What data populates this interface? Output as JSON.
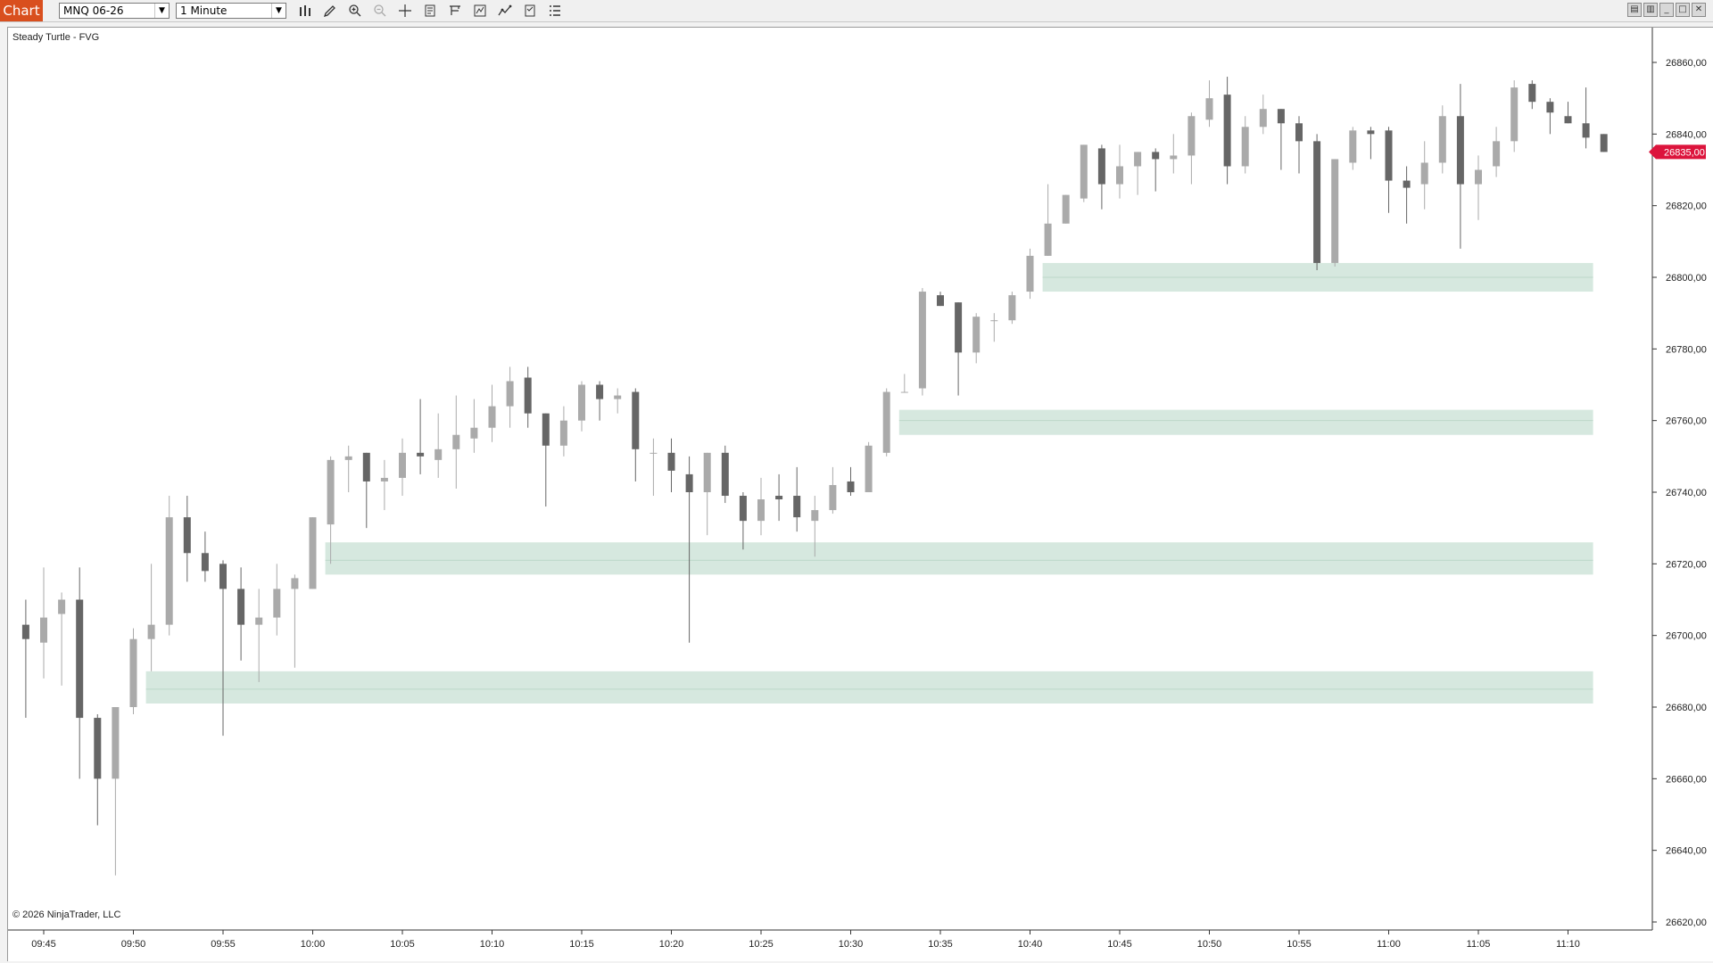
{
  "toolbar": {
    "tab_label": "Chart",
    "instrument": "MNQ 06-26",
    "interval": "1 Minute",
    "icons": [
      "bar-type-icon",
      "pencil-icon",
      "zoom-in-icon",
      "zoom-out-icon",
      "crosshair-icon",
      "properties-icon",
      "data-box-icon",
      "strategies-icon",
      "indicators-icon",
      "template-icon",
      "list-icon"
    ],
    "window_buttons": [
      "tile-icon",
      "tile-icon",
      "minimize-icon",
      "maximize-icon",
      "close-icon"
    ]
  },
  "chart": {
    "indicator_label": "Steady Turtle - FVG",
    "copyright": "© 2026 NinjaTrader, LLC",
    "price_tag": "26835,00",
    "colors": {
      "up": "#aaaaaa",
      "down": "#666666",
      "zone": "#d6e8df",
      "zone_line": "#bcd8c9",
      "price_tag": "#dc143c"
    }
  },
  "chart_data": {
    "type": "candlestick",
    "y_axis": {
      "ticks": [
        "26860,00",
        "26840,00",
        "26820,00",
        "26800,00",
        "26780,00",
        "26760,00",
        "26740,00",
        "26720,00",
        "26700,00",
        "26680,00",
        "26660,00",
        "26640,00",
        "26620,00"
      ],
      "range": [
        26617,
        26867
      ]
    },
    "x_axis": {
      "ticks": [
        "09:45",
        "09:50",
        "09:55",
        "10:00",
        "10:05",
        "10:10",
        "10:15",
        "10:20",
        "10:25",
        "10:30",
        "10:35",
        "10:40",
        "10:45",
        "10:50",
        "10:55",
        "11:00",
        "11:05",
        "11:10"
      ]
    },
    "fvg_zones": [
      {
        "top": 26804,
        "bottom": 26796,
        "mid": 26800,
        "start": "10:41",
        "end": "11:11"
      },
      {
        "top": 26763,
        "bottom": 26756,
        "mid": 26760,
        "start": "10:33",
        "end": "11:11"
      },
      {
        "top": 26726,
        "bottom": 26717,
        "mid": 26721,
        "start": "10:01",
        "end": "11:11"
      },
      {
        "top": 26690,
        "bottom": 26681,
        "mid": 26685,
        "start": "09:51",
        "end": "11:11"
      }
    ],
    "candles": [
      {
        "t": "09:44",
        "o": 26703,
        "h": 26710,
        "l": 26677,
        "c": 26699
      },
      {
        "t": "09:45",
        "o": 26698,
        "h": 26719,
        "l": 26688,
        "c": 26705
      },
      {
        "t": "09:46",
        "o": 26706,
        "h": 26712,
        "l": 26686,
        "c": 26710
      },
      {
        "t": "09:47",
        "o": 26710,
        "h": 26719,
        "l": 26660,
        "c": 26677
      },
      {
        "t": "09:48",
        "o": 26677,
        "h": 26678,
        "l": 26647,
        "c": 26660
      },
      {
        "t": "09:49",
        "o": 26660,
        "h": 26680,
        "l": 26633,
        "c": 26680
      },
      {
        "t": "09:50",
        "o": 26680,
        "h": 26702,
        "l": 26678,
        "c": 26699
      },
      {
        "t": "09:51",
        "o": 26699,
        "h": 26720,
        "l": 26690,
        "c": 26703
      },
      {
        "t": "09:52",
        "o": 26703,
        "h": 26739,
        "l": 26700,
        "c": 26733
      },
      {
        "t": "09:53",
        "o": 26733,
        "h": 26739,
        "l": 26715,
        "c": 26723
      },
      {
        "t": "09:54",
        "o": 26723,
        "h": 26729,
        "l": 26715,
        "c": 26718
      },
      {
        "t": "09:55",
        "o": 26720,
        "h": 26721,
        "l": 26672,
        "c": 26713
      },
      {
        "t": "09:56",
        "o": 26713,
        "h": 26719,
        "l": 26693,
        "c": 26703
      },
      {
        "t": "09:57",
        "o": 26703,
        "h": 26713,
        "l": 26687,
        "c": 26705
      },
      {
        "t": "09:58",
        "o": 26705,
        "h": 26720,
        "l": 26700,
        "c": 26713
      },
      {
        "t": "09:59",
        "o": 26713,
        "h": 26717,
        "l": 26691,
        "c": 26716
      },
      {
        "t": "10:00",
        "o": 26713,
        "h": 26733,
        "l": 26713,
        "c": 26733
      },
      {
        "t": "10:01",
        "o": 26731,
        "h": 26750,
        "l": 26720,
        "c": 26749
      },
      {
        "t": "10:02",
        "o": 26749,
        "h": 26753,
        "l": 26740,
        "c": 26750
      },
      {
        "t": "10:03",
        "o": 26751,
        "h": 26751,
        "l": 26730,
        "c": 26743
      },
      {
        "t": "10:04",
        "o": 26743,
        "h": 26749,
        "l": 26735,
        "c": 26744
      },
      {
        "t": "10:05",
        "o": 26744,
        "h": 26755,
        "l": 26739,
        "c": 26751
      },
      {
        "t": "10:06",
        "o": 26751,
        "h": 26766,
        "l": 26745,
        "c": 26750
      },
      {
        "t": "10:07",
        "o": 26749,
        "h": 26762,
        "l": 26744,
        "c": 26752
      },
      {
        "t": "10:08",
        "o": 26752,
        "h": 26767,
        "l": 26741,
        "c": 26756
      },
      {
        "t": "10:09",
        "o": 26755,
        "h": 26766,
        "l": 26751,
        "c": 26758
      },
      {
        "t": "10:10",
        "o": 26758,
        "h": 26770,
        "l": 26754,
        "c": 26764
      },
      {
        "t": "10:11",
        "o": 26764,
        "h": 26775,
        "l": 26758,
        "c": 26771
      },
      {
        "t": "10:12",
        "o": 26772,
        "h": 26775,
        "l": 26758,
        "c": 26762
      },
      {
        "t": "10:13",
        "o": 26762,
        "h": 26762,
        "l": 26736,
        "c": 26753
      },
      {
        "t": "10:14",
        "o": 26753,
        "h": 26764,
        "l": 26750,
        "c": 26760
      },
      {
        "t": "10:15",
        "o": 26760,
        "h": 26771,
        "l": 26757,
        "c": 26770
      },
      {
        "t": "10:16",
        "o": 26770,
        "h": 26771,
        "l": 26760,
        "c": 26766
      },
      {
        "t": "10:17",
        "o": 26766,
        "h": 26769,
        "l": 26762,
        "c": 26767
      },
      {
        "t": "10:18",
        "o": 26768,
        "h": 26769,
        "l": 26743,
        "c": 26752
      },
      {
        "t": "10:19",
        "o": 26751,
        "h": 26755,
        "l": 26739,
        "c": 26751
      },
      {
        "t": "10:20",
        "o": 26751,
        "h": 26755,
        "l": 26740,
        "c": 26746
      },
      {
        "t": "10:21",
        "o": 26745,
        "h": 26750,
        "l": 26698,
        "c": 26740
      },
      {
        "t": "10:22",
        "o": 26740,
        "h": 26751,
        "l": 26728,
        "c": 26751
      },
      {
        "t": "10:23",
        "o": 26751,
        "h": 26753,
        "l": 26737,
        "c": 26739
      },
      {
        "t": "10:24",
        "o": 26739,
        "h": 26740,
        "l": 26724,
        "c": 26732
      },
      {
        "t": "10:25",
        "o": 26732,
        "h": 26744,
        "l": 26728,
        "c": 26738
      },
      {
        "t": "10:26",
        "o": 26739,
        "h": 26745,
        "l": 26732,
        "c": 26738
      },
      {
        "t": "10:27",
        "o": 26739,
        "h": 26747,
        "l": 26729,
        "c": 26733
      },
      {
        "t": "10:28",
        "o": 26732,
        "h": 26739,
        "l": 26722,
        "c": 26735
      },
      {
        "t": "10:29",
        "o": 26735,
        "h": 26747,
        "l": 26734,
        "c": 26742
      },
      {
        "t": "10:30",
        "o": 26743,
        "h": 26747,
        "l": 26739,
        "c": 26740
      },
      {
        "t": "10:31",
        "o": 26740,
        "h": 26754,
        "l": 26740,
        "c": 26753
      },
      {
        "t": "10:32",
        "o": 26751,
        "h": 26769,
        "l": 26750,
        "c": 26768
      },
      {
        "t": "10:33",
        "o": 26768,
        "h": 26773,
        "l": 26768,
        "c": 26768
      },
      {
        "t": "10:34",
        "o": 26769,
        "h": 26797,
        "l": 26767,
        "c": 26796
      },
      {
        "t": "10:35",
        "o": 26795,
        "h": 26796,
        "l": 26792,
        "c": 26792
      },
      {
        "t": "10:36",
        "o": 26793,
        "h": 26793,
        "l": 26767,
        "c": 26779
      },
      {
        "t": "10:37",
        "o": 26779,
        "h": 26790,
        "l": 26776,
        "c": 26789
      },
      {
        "t": "10:38",
        "o": 26788,
        "h": 26790,
        "l": 26782,
        "c": 26788
      },
      {
        "t": "10:39",
        "o": 26788,
        "h": 26796,
        "l": 26787,
        "c": 26795
      },
      {
        "t": "10:40",
        "o": 26796,
        "h": 26808,
        "l": 26794,
        "c": 26806
      },
      {
        "t": "10:41",
        "o": 26806,
        "h": 26826,
        "l": 26806,
        "c": 26815
      },
      {
        "t": "10:42",
        "o": 26815,
        "h": 26823,
        "l": 26815,
        "c": 26823
      },
      {
        "t": "10:43",
        "o": 26822,
        "h": 26837,
        "l": 26821,
        "c": 26837
      },
      {
        "t": "10:44",
        "o": 26836,
        "h": 26837,
        "l": 26819,
        "c": 26826
      },
      {
        "t": "10:45",
        "o": 26826,
        "h": 26837,
        "l": 26822,
        "c": 26831
      },
      {
        "t": "10:46",
        "o": 26831,
        "h": 26835,
        "l": 26823,
        "c": 26835
      },
      {
        "t": "10:47",
        "o": 26835,
        "h": 26836,
        "l": 26824,
        "c": 26833
      },
      {
        "t": "10:48",
        "o": 26833,
        "h": 26840,
        "l": 26829,
        "c": 26834
      },
      {
        "t": "10:49",
        "o": 26834,
        "h": 26846,
        "l": 26826,
        "c": 26845
      },
      {
        "t": "10:50",
        "o": 26844,
        "h": 26855,
        "l": 26842,
        "c": 26850
      },
      {
        "t": "10:51",
        "o": 26851,
        "h": 26856,
        "l": 26826,
        "c": 26831
      },
      {
        "t": "10:52",
        "o": 26831,
        "h": 26845,
        "l": 26829,
        "c": 26842
      },
      {
        "t": "10:53",
        "o": 26842,
        "h": 26851,
        "l": 26840,
        "c": 26847
      },
      {
        "t": "10:54",
        "o": 26847,
        "h": 26847,
        "l": 26830,
        "c": 26843
      },
      {
        "t": "10:55",
        "o": 26843,
        "h": 26845,
        "l": 26829,
        "c": 26838
      },
      {
        "t": "10:56",
        "o": 26838,
        "h": 26840,
        "l": 26802,
        "c": 26804
      },
      {
        "t": "10:57",
        "o": 26804,
        "h": 26833,
        "l": 26803,
        "c": 26833
      },
      {
        "t": "10:58",
        "o": 26832,
        "h": 26842,
        "l": 26830,
        "c": 26841
      },
      {
        "t": "10:59",
        "o": 26841,
        "h": 26842,
        "l": 26833,
        "c": 26840
      },
      {
        "t": "11:00",
        "o": 26841,
        "h": 26842,
        "l": 26818,
        "c": 26827
      },
      {
        "t": "11:01",
        "o": 26827,
        "h": 26831,
        "l": 26815,
        "c": 26825
      },
      {
        "t": "11:02",
        "o": 26826,
        "h": 26838,
        "l": 26819,
        "c": 26832
      },
      {
        "t": "11:03",
        "o": 26832,
        "h": 26848,
        "l": 26829,
        "c": 26845
      },
      {
        "t": "11:04",
        "o": 26845,
        "h": 26854,
        "l": 26808,
        "c": 26826
      },
      {
        "t": "11:05",
        "o": 26826,
        "h": 26834,
        "l": 26816,
        "c": 26830
      },
      {
        "t": "11:06",
        "o": 26831,
        "h": 26842,
        "l": 26828,
        "c": 26838
      },
      {
        "t": "11:07",
        "o": 26838,
        "h": 26855,
        "l": 26835,
        "c": 26853
      },
      {
        "t": "11:08",
        "o": 26854,
        "h": 26855,
        "l": 26847,
        "c": 26849
      },
      {
        "t": "11:09",
        "o": 26849,
        "h": 26850,
        "l": 26840,
        "c": 26846
      },
      {
        "t": "11:10",
        "o": 26845,
        "h": 26849,
        "l": 26843,
        "c": 26843
      },
      {
        "t": "11:11",
        "o": 26843,
        "h": 26853,
        "l": 26836,
        "c": 26839
      },
      {
        "t": "11:12",
        "o": 26840,
        "h": 26840,
        "l": 26835,
        "c": 26835
      }
    ]
  }
}
